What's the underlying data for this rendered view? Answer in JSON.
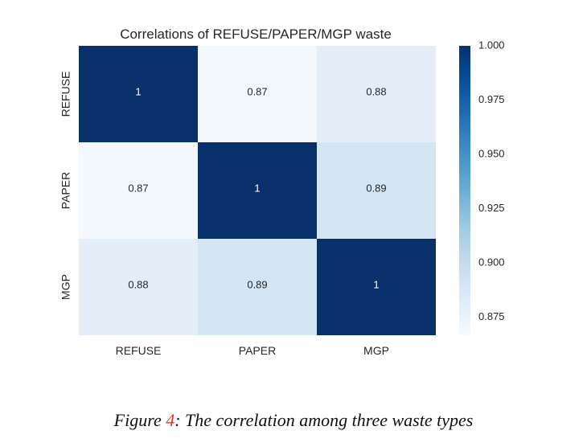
{
  "chart_data": {
    "type": "heatmap",
    "title": "Correlations of REFUSE/PAPER/MGP waste",
    "xlabel": "",
    "ylabel": "",
    "x_categories": [
      "REFUSE",
      "PAPER",
      "MGP"
    ],
    "y_categories": [
      "REFUSE",
      "PAPER",
      "MGP"
    ],
    "values": [
      [
        1,
        0.87,
        0.88
      ],
      [
        0.87,
        1,
        0.89
      ],
      [
        0.88,
        0.89,
        1
      ]
    ],
    "cell_labels": [
      [
        "1",
        "0.87",
        "0.88"
      ],
      [
        "0.87",
        "1",
        "0.89"
      ],
      [
        "0.88",
        "0.89",
        "1"
      ]
    ],
    "colormap": "Blues",
    "colors": {
      "low": "#f7fbff",
      "mid": "#6baed6",
      "high": "#08306b"
    },
    "colorbar": {
      "range": [
        0.8666,
        1.0
      ],
      "ticks": [
        1.0,
        0.975,
        0.95,
        0.925,
        0.9,
        0.875
      ],
      "tick_labels": [
        "1.000",
        "0.975",
        "0.950",
        "0.925",
        "0.900",
        "0.875"
      ],
      "placement": "right"
    },
    "grid": false
  },
  "caption": {
    "prefix": "Figure ",
    "number": "4",
    "text": ": The correlation among three waste types"
  }
}
